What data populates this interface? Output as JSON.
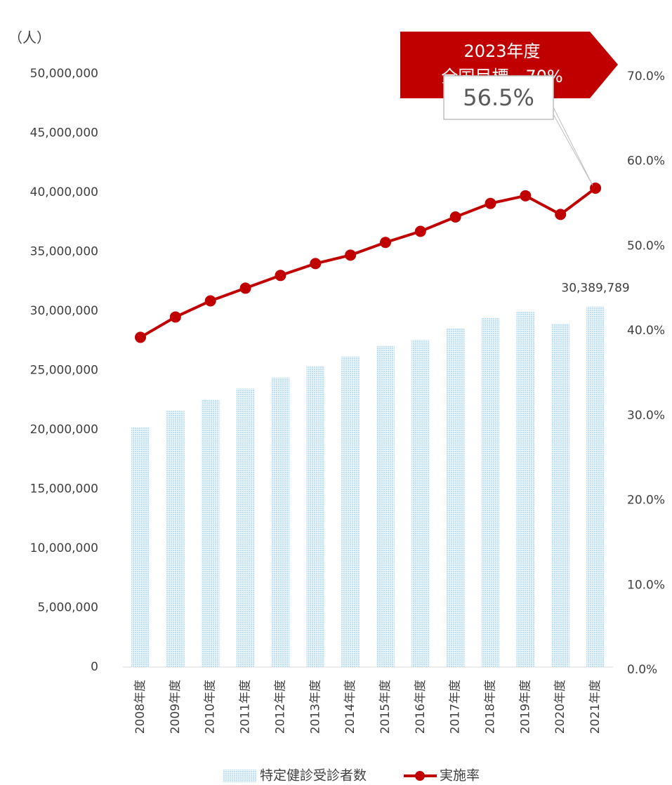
{
  "chart_data": {
    "type": "bar_line",
    "y_label": "（人）",
    "annotation": [
      "2023年度",
      "全国目標　70%"
    ],
    "categories": [
      "2008年度",
      "2009年度",
      "2010年度",
      "2011年度",
      "2012年度",
      "2013年度",
      "2014年度",
      "2015年度",
      "2016年度",
      "2017年度",
      "2018年度",
      "2019年度",
      "2020年度",
      "2021年度"
    ],
    "series": [
      {
        "name": "特定健診受診者数",
        "type": "bar",
        "color": "#bcdff5",
        "values": [
          20192502,
          21588883,
          22546778,
          23465995,
          24396035,
          25374874,
          26163456,
          27058105,
          27559428,
          28562868,
          29403752,
          29935810,
          28939947,
          30389789
        ],
        "value_labels": [
          null,
          null,
          null,
          null,
          null,
          null,
          null,
          null,
          null,
          null,
          null,
          null,
          null,
          "30,389,789"
        ]
      },
      {
        "name": "実施率",
        "type": "line",
        "axis": "y2",
        "color": "#c00000",
        "values": [
          38.9,
          41.3,
          43.2,
          44.7,
          46.2,
          47.6,
          48.6,
          50.1,
          51.4,
          53.1,
          54.7,
          55.6,
          53.4,
          56.5
        ],
        "value_labels": [
          null,
          null,
          null,
          null,
          null,
          null,
          null,
          null,
          null,
          null,
          null,
          null,
          null,
          "56.5%"
        ]
      }
    ],
    "ylim": [
      0,
      50000000
    ],
    "yticks": [
      {
        "value": 0,
        "label": "0"
      },
      {
        "value": 5000000,
        "label": "5,000,000"
      },
      {
        "value": 10000000,
        "label": "10,000,000"
      },
      {
        "value": 15000000,
        "label": "15,000,000"
      },
      {
        "value": 20000000,
        "label": "20,000,000"
      },
      {
        "value": 25000000,
        "label": "25,000,000"
      },
      {
        "value": 30000000,
        "label": "30,000,000"
      },
      {
        "value": 35000000,
        "label": "35,000,000"
      },
      {
        "value": 40000000,
        "label": "40,000,000"
      },
      {
        "value": 45000000,
        "label": "45,000,000"
      },
      {
        "value": 50000000,
        "label": "50,000,000"
      }
    ],
    "y2lim": [
      0,
      70
    ],
    "y2ticks": [
      {
        "value": 0,
        "label": "0.0%"
      },
      {
        "value": 10,
        "label": "10.0%"
      },
      {
        "value": 20,
        "label": "20.0%"
      },
      {
        "value": 30,
        "label": "30.0%"
      },
      {
        "value": 40,
        "label": "40.0%"
      },
      {
        "value": 50,
        "label": "50.0%"
      },
      {
        "value": 60,
        "label": "60.0%"
      },
      {
        "value": 70,
        "label": "70.0%"
      }
    ],
    "grid": false
  }
}
